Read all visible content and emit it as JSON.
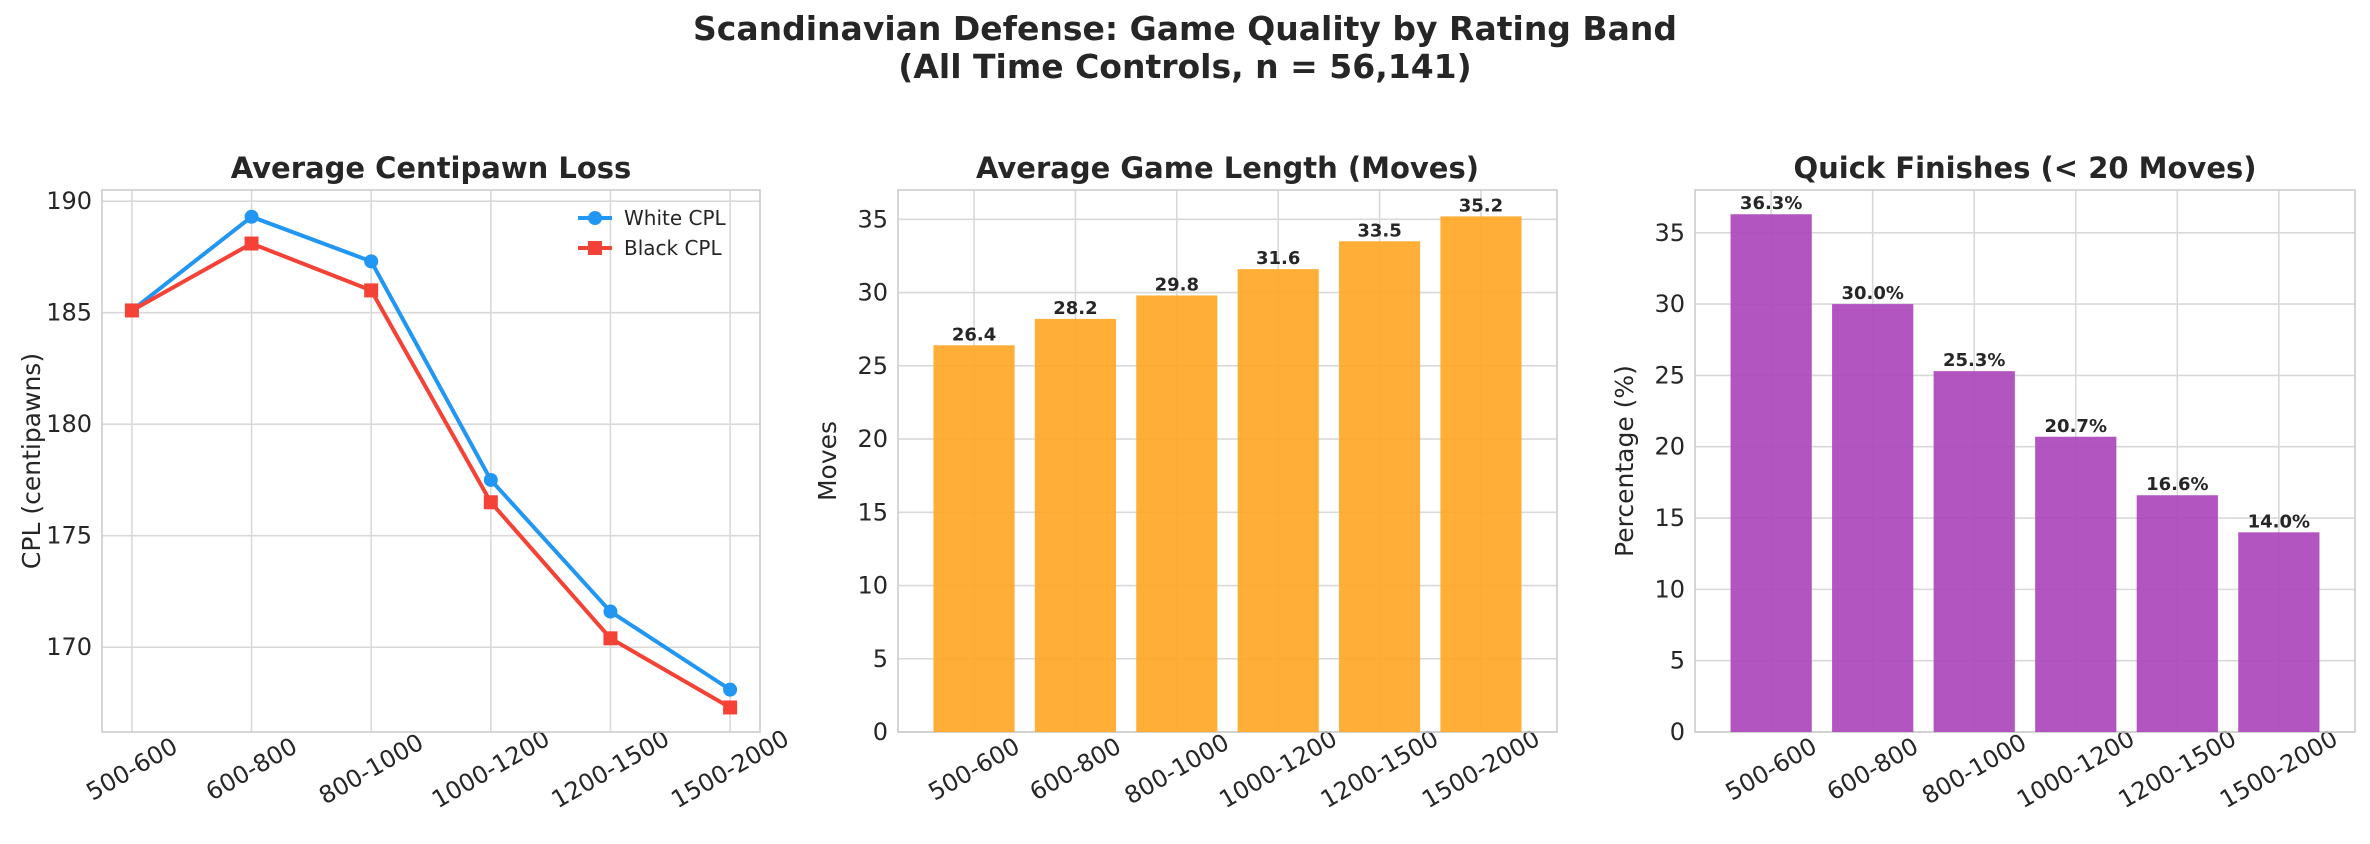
{
  "figure": {
    "title_line1": "Scandinavian Defense: Game Quality by Rating Band",
    "title_line2": "(All Time Controls, n = 56,141)"
  },
  "chart_data": [
    {
      "type": "line",
      "title": "Average Centipawn Loss",
      "xlabel": "",
      "ylabel": "CPL (centipawns)",
      "categories": [
        "500-600",
        "600-800",
        "800-1000",
        "1000-1200",
        "1200-1500",
        "1500-2000"
      ],
      "series": [
        {
          "name": "White CPL",
          "values": [
            185.1,
            189.3,
            187.3,
            177.5,
            171.6,
            168.1
          ],
          "color": "#2196F3",
          "marker": "circle"
        },
        {
          "name": "Black CPL",
          "values": [
            185.1,
            188.1,
            186.0,
            176.5,
            170.4,
            167.3
          ],
          "color": "#F44336",
          "marker": "square"
        }
      ],
      "ylim": [
        166.2,
        190.5
      ],
      "yticks": [
        170,
        175,
        180,
        185,
        190
      ],
      "grid": true,
      "legend_position": "top-right"
    },
    {
      "type": "bar",
      "title": "Average Game Length (Moves)",
      "xlabel": "",
      "ylabel": "Moves",
      "categories": [
        "500-600",
        "600-800",
        "800-1000",
        "1000-1200",
        "1200-1500",
        "1500-2000"
      ],
      "values": [
        26.4,
        28.2,
        29.8,
        31.6,
        33.5,
        35.2
      ],
      "labels": [
        "26.4",
        "28.2",
        "29.8",
        "31.6",
        "33.5",
        "35.2"
      ],
      "color": "#FFA726",
      "ylim": [
        0,
        37
      ],
      "yticks": [
        0,
        5,
        10,
        15,
        20,
        25,
        30,
        35
      ],
      "grid": true
    },
    {
      "type": "bar",
      "title": "Quick Finishes (< 20 Moves)",
      "xlabel": "",
      "ylabel": "Percentage (%)",
      "categories": [
        "500-600",
        "600-800",
        "800-1000",
        "1000-1200",
        "1200-1500",
        "1500-2000"
      ],
      "values": [
        36.3,
        30.0,
        25.3,
        20.7,
        16.6,
        14.0
      ],
      "labels": [
        "36.3%",
        "30.0%",
        "25.3%",
        "20.7%",
        "16.6%",
        "14.0%"
      ],
      "color": "#AB47BC",
      "ylim": [
        0,
        38
      ],
      "yticks": [
        0,
        5,
        10,
        15,
        20,
        25,
        30,
        35
      ],
      "grid": true
    }
  ]
}
